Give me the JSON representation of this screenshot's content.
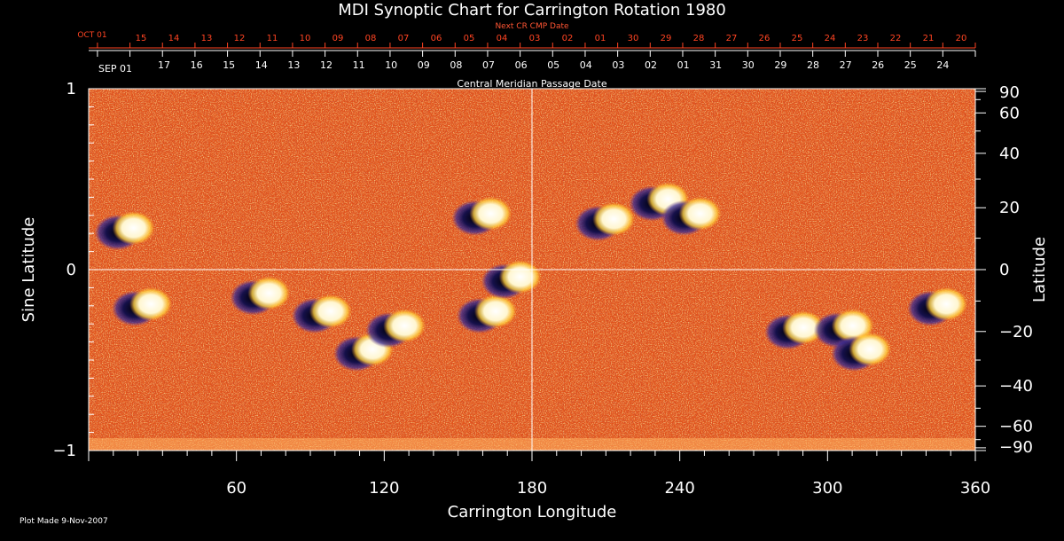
{
  "chart_data": {
    "type": "heatmap",
    "title": "MDI Synoptic Chart for Carrington Rotation 1980",
    "xlabel": "Carrington Longitude",
    "ylabel_left": "Sine Latitude",
    "ylabel_right": "Latitude",
    "top_axis_label": "Central Meridian Passage Date",
    "next_axis_label": "Next CR CMP Date",
    "xlim": [
      0,
      360
    ],
    "ylim": [
      -1,
      1
    ],
    "x_ticks": [
      60,
      120,
      180,
      240,
      300,
      360
    ],
    "y_ticks_left": [
      {
        "value": 1,
        "label": "1"
      },
      {
        "value": 0,
        "label": "0"
      },
      {
        "value": -1,
        "label": "−1"
      }
    ],
    "y_ticks_right": [
      90,
      60,
      40,
      20,
      0,
      -20,
      -40,
      -60,
      -90
    ],
    "right_tick_labels": [
      "90",
      "60",
      "40",
      "20",
      "0",
      "−20",
      "−40",
      "−60",
      "−90"
    ],
    "cmp_dates": {
      "first": "SEP 01",
      "days": [
        "17",
        "16",
        "15",
        "14",
        "13",
        "12",
        "11",
        "10",
        "09",
        "08",
        "07",
        "06",
        "05",
        "04",
        "03",
        "02",
        "01",
        "31",
        "30",
        "29",
        "28",
        "27",
        "26",
        "25",
        "24"
      ]
    },
    "next_cmp_dates": {
      "first": "OCT 01",
      "days": [
        "15",
        "14",
        "13",
        "12",
        "11",
        "10",
        "09",
        "08",
        "07",
        "06",
        "05",
        "04",
        "03",
        "02",
        "01",
        "30",
        "29",
        "28",
        "27",
        "26",
        "25",
        "24",
        "23",
        "22",
        "21",
        "20"
      ]
    },
    "regions": [
      {
        "lon": 15,
        "sinlat": 0.22,
        "polarity": "mixed"
      },
      {
        "lon": 22,
        "sinlat": -0.2,
        "polarity": "mixed"
      },
      {
        "lon": 70,
        "sinlat": -0.14,
        "polarity": "mixed"
      },
      {
        "lon": 95,
        "sinlat": -0.24,
        "polarity": "mixed"
      },
      {
        "lon": 112,
        "sinlat": -0.45,
        "polarity": "mixed"
      },
      {
        "lon": 125,
        "sinlat": -0.32,
        "polarity": "mixed"
      },
      {
        "lon": 160,
        "sinlat": 0.3,
        "polarity": "mixed"
      },
      {
        "lon": 162,
        "sinlat": -0.24,
        "polarity": "mixed"
      },
      {
        "lon": 172,
        "sinlat": -0.05,
        "polarity": "mixed"
      },
      {
        "lon": 210,
        "sinlat": 0.27,
        "polarity": "mixed"
      },
      {
        "lon": 232,
        "sinlat": 0.38,
        "polarity": "mixed"
      },
      {
        "lon": 245,
        "sinlat": 0.3,
        "polarity": "mixed"
      },
      {
        "lon": 287,
        "sinlat": -0.33,
        "polarity": "mixed"
      },
      {
        "lon": 307,
        "sinlat": -0.32,
        "polarity": "mixed"
      },
      {
        "lon": 314,
        "sinlat": -0.45,
        "polarity": "mixed"
      },
      {
        "lon": 345,
        "sinlat": -0.2,
        "polarity": "mixed"
      }
    ],
    "grid": true
  },
  "footer": {
    "plot_made": "Plot Made  9-Nov-2007"
  }
}
